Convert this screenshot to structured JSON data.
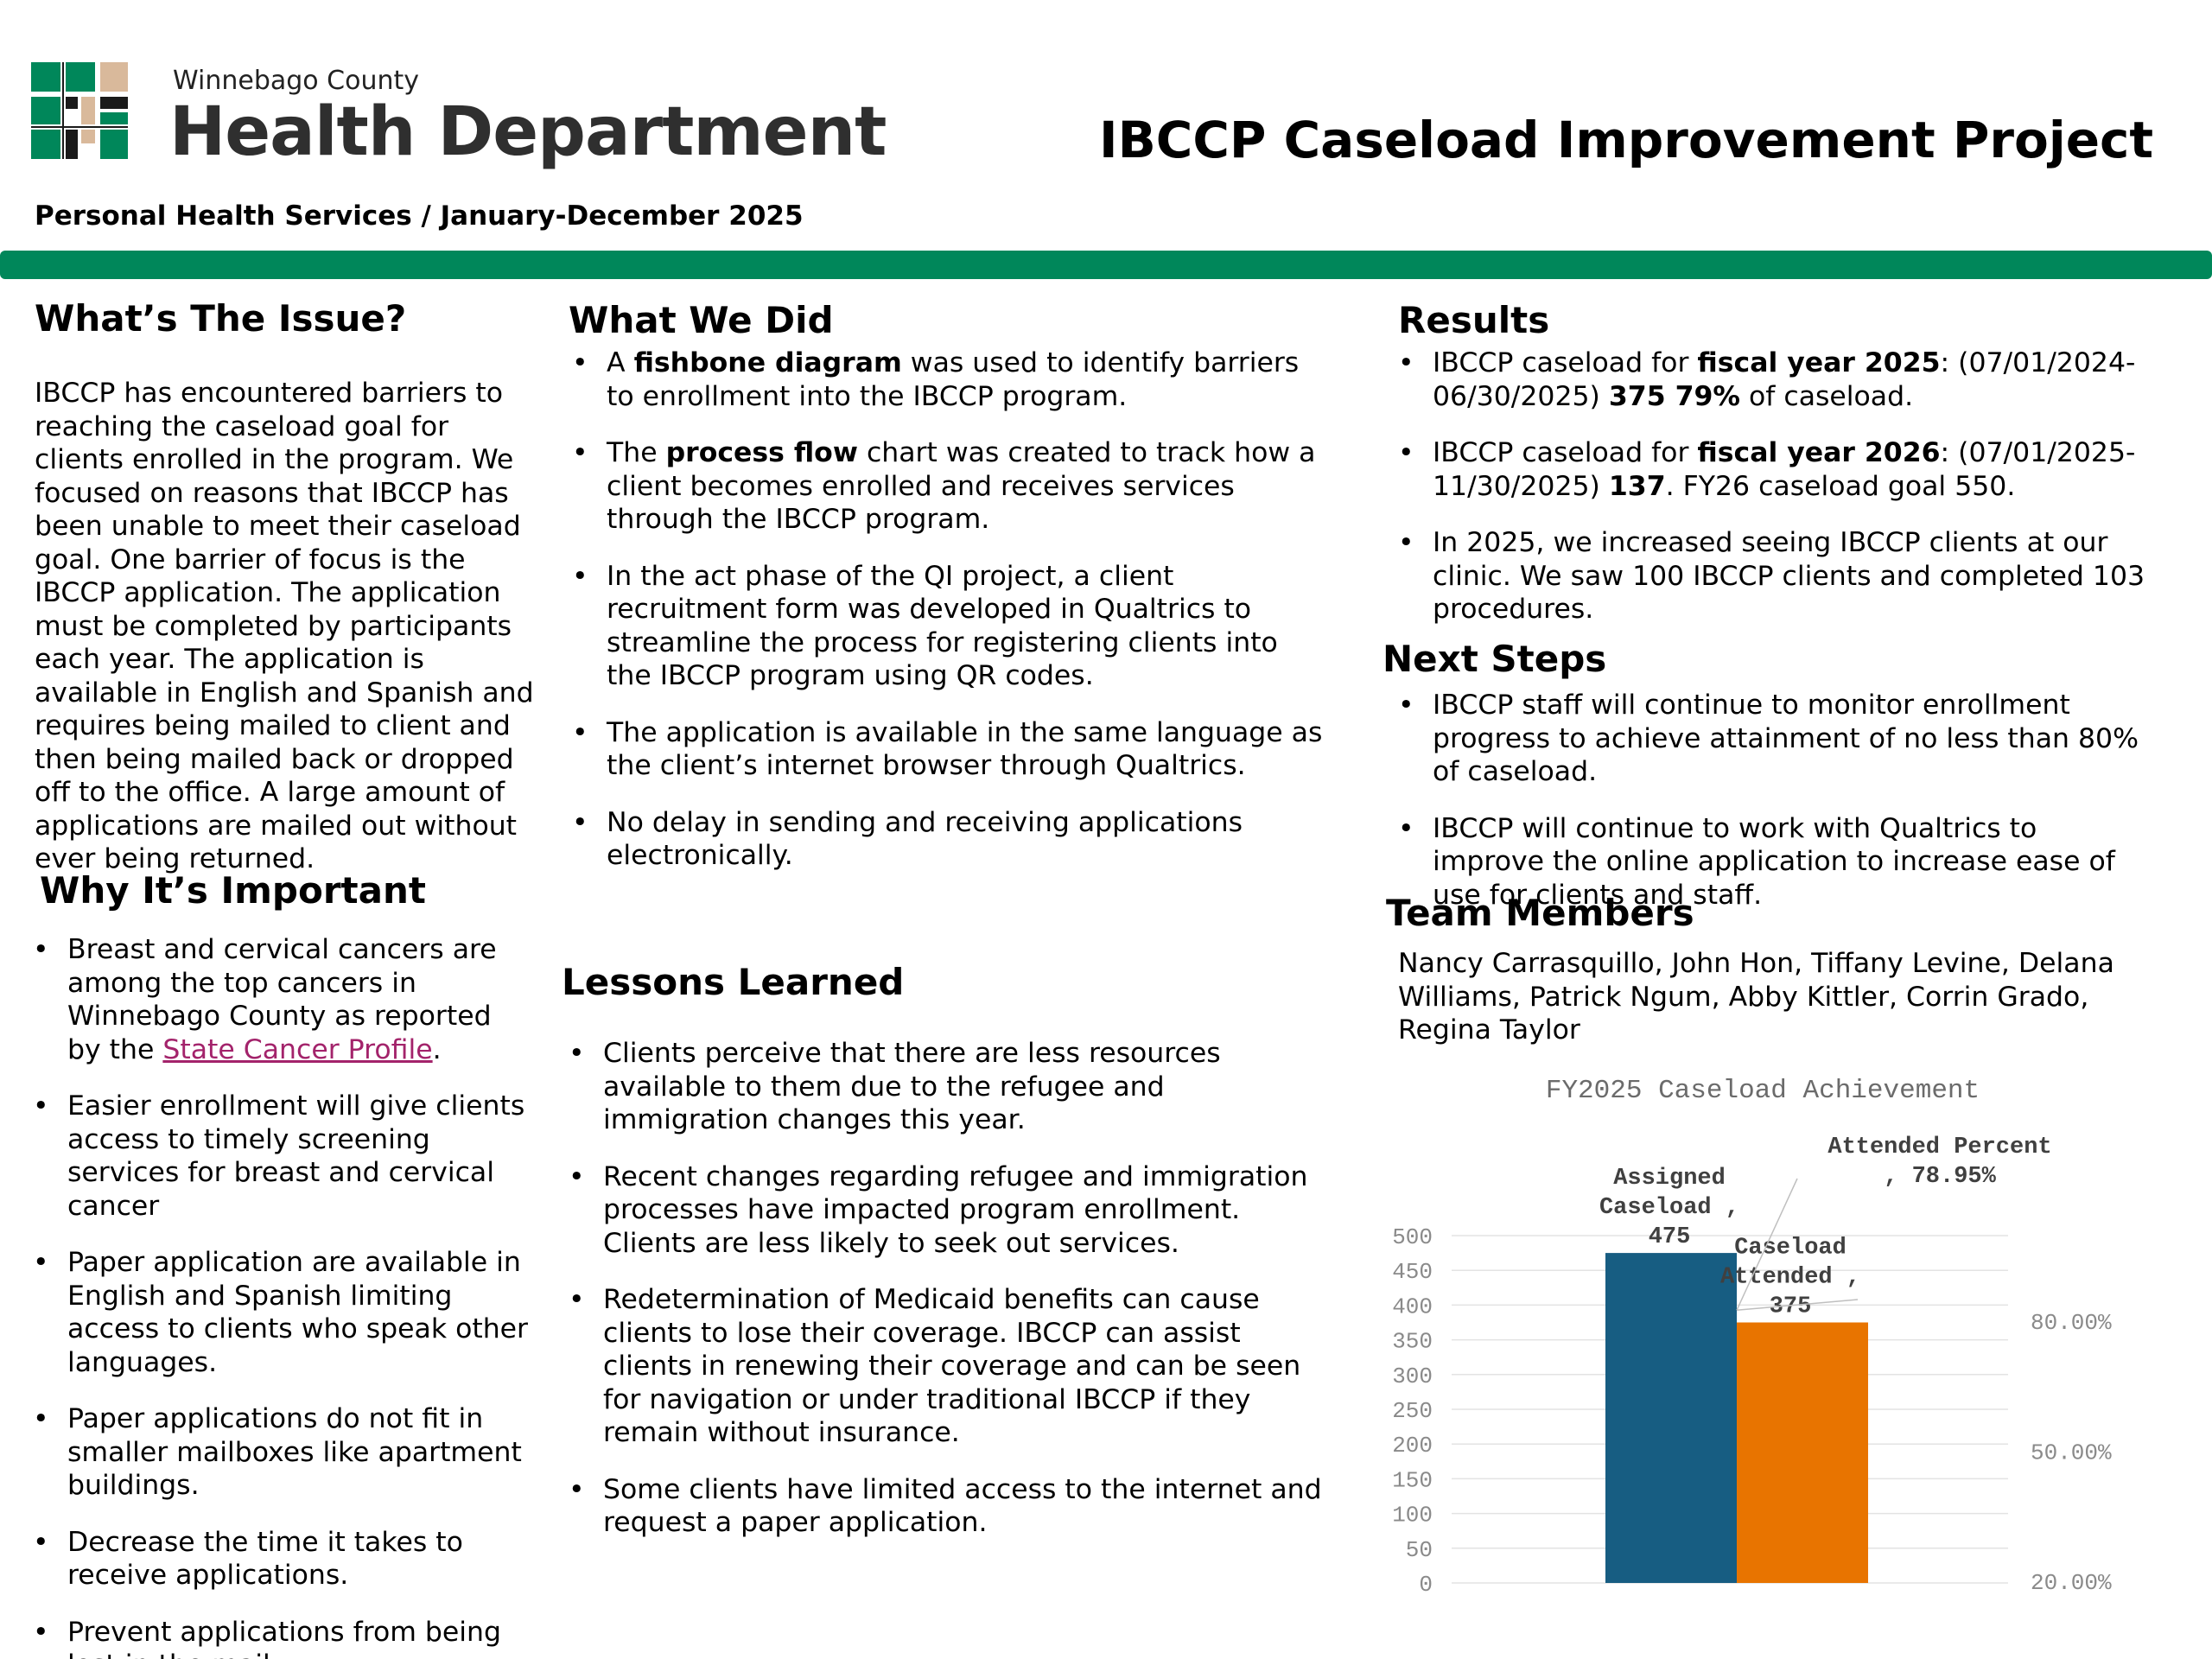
{
  "header": {
    "org_small": "Winnebago County",
    "org_big": "Health Department",
    "title": "IBCCP Caseload Improvement Project",
    "subtitle": "Personal Health Services / January-December 2025",
    "brand_color": "#00875a",
    "logo_colors": [
      "#00875a",
      "#d9b99b",
      "#1a1a1a"
    ]
  },
  "issue": {
    "heading": "What’s The Issue?",
    "text": "IBCCP has encountered barriers to reaching the caseload goal for clients enrolled in the program. We focused on reasons that IBCCP has been unable to meet their caseload goal. One barrier of focus is the IBCCP application. The application must be completed by participants each year. The application is available in English and Spanish and requires being mailed to client and then being mailed back or dropped off to the office. A large amount of applications are mailed out without ever being returned."
  },
  "important": {
    "heading": "Why It’s Important",
    "item1_pre": "Breast and cervical cancers are among the top cancers in Winnebago County as reported by the ",
    "item1_link": "State Cancer Profile",
    "item1_post": ".",
    "items": [
      "Easier enrollment will give clients access to timely screening services for breast and cervical cancer",
      "Paper application are available in English and Spanish limiting access to clients who speak other languages.",
      "Paper applications do not fit in smaller mailboxes like apartment buildings.",
      "Decrease the time it takes to receive applications.",
      "Prevent applications from being lost in the mail."
    ]
  },
  "did": {
    "heading": "What We Did",
    "item1_pre": "A ",
    "item1_bold": "fishbone diagram",
    "item1_post": " was used to identify barriers to enrollment into the IBCCP program.",
    "item2_pre": "The ",
    "item2_bold": "process flow",
    "item2_post": " chart was created to track how a client becomes enrolled and receives services through the IBCCP program.",
    "items": [
      "In the act phase of the QI project, a client recruitment form was developed in Qualtrics to streamline the process for registering clients into the IBCCP program using QR codes.",
      "The application is available in the same language as the client’s internet browser through Qualtrics.",
      "No delay in sending and receiving applications electronically."
    ]
  },
  "lessons": {
    "heading": "Lessons Learned",
    "items": [
      "Clients perceive that there are less resources available to them due to the refugee and immigration changes this year.",
      "Recent changes regarding refugee and immigration processes have impacted program enrollment. Clients are less likely to seek out services.",
      "Redetermination of Medicaid benefits can cause clients to lose their coverage. IBCCP can assist clients in renewing their coverage and can be seen for navigation or under traditional IBCCP if they remain without insurance.",
      "Some clients have limited access to the internet and request a paper application."
    ]
  },
  "results": {
    "heading": "Results",
    "r1_pre": "IBCCP caseload for ",
    "r1_bold": "fiscal year 2025",
    "r1_mid": ": (07/01/2024-06/30/2025) ",
    "r1_bold2": "375 79%",
    "r1_post": " of caseload.",
    "r2_pre": "IBCCP caseload for ",
    "r2_bold": "fiscal year 2026",
    "r2_mid": ": (07/01/2025-11/30/2025) ",
    "r2_bold2": "137",
    "r2_post": ". FY26 caseload goal 550.",
    "r3": " In 2025, we increased seeing IBCCP clients at our clinic. We saw 100 IBCCP clients and completed 103 procedures."
  },
  "next": {
    "heading": "Next Steps",
    "items": [
      "IBCCP staff will continue to monitor enrollment progress to achieve attainment of no less than 80% of caseload.",
      "IBCCP will continue to work with Qualtrics to improve the online application to increase ease of use for clients and staff."
    ]
  },
  "team": {
    "heading": "Team Members",
    "text": "Nancy Carrasquillo, John Hon, Tiffany Levine, Delana Williams, Patrick Ngum, Abby Kittler, Corrin Grado, Regina Taylor"
  },
  "chart_data": {
    "type": "bar",
    "title": "FY2025 Caseload Achievement",
    "categories": [
      "Assigned Caseload",
      "Caseload Attended"
    ],
    "values": [
      475,
      375
    ],
    "colors": [
      "#175d82",
      "#e87400"
    ],
    "data_labels": [
      [
        "Assigned",
        "Caseload ,",
        "475"
      ],
      [
        "Caseload",
        "Attended ,",
        "375"
      ]
    ],
    "percent_label": [
      "Attended Percent",
      ", 78.95%"
    ],
    "percent_value": 78.95,
    "ylim": [
      0,
      500
    ],
    "yticks": [
      "0",
      "50",
      "100",
      "150",
      "200",
      "250",
      "300",
      "350",
      "400",
      "450",
      "500"
    ],
    "secondary_ylim": [
      20,
      80
    ],
    "secondary_ticks": [
      "20.00%",
      "50.00%",
      "80.00%"
    ],
    "grid": true
  }
}
